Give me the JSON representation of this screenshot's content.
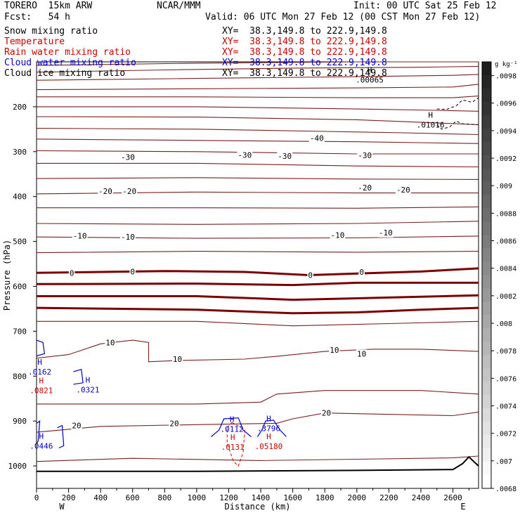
{
  "header": {
    "model": "TORERO  15km ARW",
    "center": "NCAR/MMM",
    "init": "Init: 00 UTC Sat 25 Feb 12",
    "fcst": "Fcst:   54 h",
    "valid": "Valid: 06 UTC Mon 27 Feb 12 (00 CST Mon 27 Feb 12)"
  },
  "legend": [
    {
      "label": "Snow mixing ratio",
      "xy": "XY=  38.3,149.8 to 222.9,149.8",
      "color": "#000000"
    },
    {
      "label": "Temperature",
      "xy": "XY=  38.3,149.8 to 222.9,149.8",
      "color": "#cc0000"
    },
    {
      "label": "Rain water mixing ratio",
      "xy": "XY=  38.3,149.8 to 222.9,149.8",
      "color": "#cc0000"
    },
    {
      "label": "Cloud water mixing ratio",
      "xy": "XY=  38.3,149.8 to 222.9,149.8",
      "color": "#0000cc"
    },
    {
      "label": "Cloud ice mixing ratio",
      "xy": "XY=  38.3,149.8 to 222.9,149.8",
      "color": "#000000"
    }
  ],
  "colorbar": {
    "unit": "g kg⁻¹",
    "ticks": [
      ".0098",
      ".0096",
      ".0094",
      ".0092",
      ".009",
      ".0088",
      ".0086",
      ".0084",
      ".0082",
      ".008",
      ".0078",
      ".0076",
      ".0074",
      ".0072",
      ".007",
      ".0068"
    ],
    "levels": [
      0.0099,
      0.0068
    ]
  },
  "chart_data": {
    "type": "contour",
    "xlabel": "Distance (km)",
    "ylabel": "Pressure (hPa)",
    "xlim": [
      0,
      2760
    ],
    "ylim": [
      1050,
      100
    ],
    "xticks": [
      0,
      200,
      400,
      600,
      800,
      1000,
      1200,
      1400,
      1600,
      1800,
      2000,
      2200,
      2400,
      2600
    ],
    "yticks": [
      200,
      300,
      400,
      500,
      600,
      700,
      800,
      900,
      1000
    ],
    "x_end_labels": {
      "left": "W",
      "right": "E"
    },
    "temperature_contours": [
      {
        "level": -50,
        "points": [
          [
            0,
            108
          ],
          [
            1000,
            103
          ],
          [
            2000,
            100
          ],
          [
            2760,
            100
          ]
        ]
      },
      {
        "level": -50,
        "points": [
          [
            0,
            123
          ],
          [
            800,
            118
          ],
          [
            1600,
            114
          ],
          [
            2400,
            112
          ],
          [
            2760,
            110
          ]
        ]
      },
      {
        "level": -50,
        "points": [
          [
            0,
            141
          ],
          [
            1000,
            137
          ],
          [
            2000,
            133
          ],
          [
            2600,
            130
          ],
          [
            2760,
            128
          ]
        ]
      },
      {
        "level": -50,
        "points": [
          [
            0,
            162
          ],
          [
            1000,
            160
          ],
          [
            2000,
            158
          ],
          [
            2600,
            156
          ],
          [
            2760,
            150
          ]
        ]
      },
      {
        "level": -50,
        "points": [
          [
            0,
            178
          ],
          [
            1000,
            178
          ],
          [
            2000,
            180
          ],
          [
            2600,
            180
          ],
          [
            2760,
            176
          ]
        ]
      },
      {
        "level": -40,
        "points": [
          [
            0,
            200
          ],
          [
            1000,
            200
          ],
          [
            2000,
            205
          ],
          [
            2500,
            208
          ],
          [
            2760,
            210
          ]
        ]
      },
      {
        "level": -40,
        "points": [
          [
            0,
            222
          ],
          [
            1000,
            223
          ],
          [
            2000,
            229
          ],
          [
            2500,
            236
          ],
          [
            2760,
            240
          ]
        ]
      },
      {
        "level": -40,
        "points": [
          [
            0,
            248
          ],
          [
            1000,
            250
          ],
          [
            1800,
            255
          ],
          [
            2300,
            258
          ],
          [
            2760,
            262
          ]
        ]
      },
      {
        "level": -40,
        "points": [
          [
            0,
            272
          ],
          [
            1000,
            275
          ],
          [
            2000,
            278
          ],
          [
            2760,
            282
          ]
        ]
      },
      {
        "level": -30,
        "points": [
          [
            0,
            298
          ],
          [
            1000,
            300
          ],
          [
            2000,
            305
          ],
          [
            2760,
            305
          ]
        ]
      },
      {
        "level": -30,
        "points": [
          [
            0,
            326
          ],
          [
            1000,
            326
          ],
          [
            2000,
            332
          ],
          [
            2760,
            334
          ]
        ]
      },
      {
        "level": -20,
        "points": [
          [
            0,
            360
          ],
          [
            1000,
            358
          ],
          [
            2000,
            361
          ],
          [
            2760,
            362
          ]
        ]
      },
      {
        "level": -20,
        "points": [
          [
            0,
            394
          ],
          [
            1000,
            390
          ],
          [
            2000,
            392
          ],
          [
            2760,
            392
          ]
        ]
      },
      {
        "level": -10,
        "points": [
          [
            0,
            425
          ],
          [
            1000,
            425
          ],
          [
            2000,
            426
          ],
          [
            2760,
            423
          ]
        ]
      },
      {
        "level": -10,
        "points": [
          [
            0,
            460
          ],
          [
            1000,
            462
          ],
          [
            2000,
            460
          ],
          [
            2760,
            455
          ]
        ]
      },
      {
        "level": -10,
        "points": [
          [
            0,
            490
          ],
          [
            1000,
            493
          ],
          [
            2000,
            492
          ],
          [
            2760,
            488
          ]
        ]
      },
      {
        "level": -10,
        "points": [
          [
            0,
            525
          ],
          [
            1000,
            522
          ],
          [
            2000,
            524
          ],
          [
            2760,
            522
          ]
        ]
      },
      {
        "level": 0,
        "points": [
          [
            0,
            570
          ],
          [
            800,
            566
          ],
          [
            1300,
            568
          ],
          [
            1700,
            575
          ],
          [
            2400,
            567
          ],
          [
            2760,
            560
          ]
        ]
      },
      {
        "level": 0,
        "points": [
          [
            0,
            595
          ],
          [
            1000,
            594
          ],
          [
            1600,
            597
          ],
          [
            2000,
            592
          ],
          [
            2760,
            592
          ]
        ]
      },
      {
        "level": 0,
        "points": [
          [
            0,
            622
          ],
          [
            1000,
            622
          ],
          [
            1600,
            630
          ],
          [
            2200,
            625
          ],
          [
            2760,
            620
          ]
        ]
      },
      {
        "level": 0,
        "points": [
          [
            0,
            648
          ],
          [
            1000,
            652
          ],
          [
            1600,
            660
          ],
          [
            2000,
            658
          ],
          [
            2400,
            652
          ],
          [
            2760,
            648
          ]
        ]
      },
      {
        "level": 10,
        "points": [
          [
            0,
            678
          ],
          [
            1000,
            678
          ],
          [
            1600,
            688
          ],
          [
            2200,
            683
          ],
          [
            2760,
            678
          ]
        ]
      },
      {
        "level": 10,
        "points": [
          [
            0,
            760
          ],
          [
            200,
            752
          ],
          [
            400,
            728
          ],
          [
            600,
            720
          ],
          [
            700,
            725
          ],
          [
            700,
            768
          ],
          [
            900,
            765
          ],
          [
            1300,
            762
          ],
          [
            1500,
            756
          ],
          [
            1800,
            745
          ],
          [
            2100,
            740
          ],
          [
            2400,
            740
          ],
          [
            2760,
            745
          ]
        ]
      },
      {
        "level": 20,
        "points": [
          [
            0,
            862
          ],
          [
            1000,
            862
          ],
          [
            1400,
            858
          ],
          [
            1500,
            840
          ],
          [
            1800,
            832
          ],
          [
            2400,
            832
          ],
          [
            2760,
            840
          ]
        ]
      },
      {
        "level": 20,
        "points": [
          [
            0,
            925
          ],
          [
            400,
            912
          ],
          [
            1000,
            908
          ],
          [
            1500,
            905
          ],
          [
            1600,
            895
          ],
          [
            1800,
            882
          ],
          [
            2600,
            888
          ],
          [
            2760,
            880
          ]
        ]
      },
      {
        "level": 20,
        "points": [
          [
            0,
            990
          ],
          [
            600,
            983
          ],
          [
            1400,
            988
          ],
          [
            2000,
            985
          ],
          [
            2600,
            982
          ],
          [
            2760,
            978
          ]
        ]
      }
    ],
    "contour_labels": [
      {
        "text": "-40",
        "x": 1750,
        "y": 270
      },
      {
        "text": "-30",
        "x": 570,
        "y": 312
      },
      {
        "text": "-30",
        "x": 1300,
        "y": 307
      },
      {
        "text": "-30",
        "x": 1550,
        "y": 310
      },
      {
        "text": "-30",
        "x": 2050,
        "y": 308
      },
      {
        "text": "-20",
        "x": 430,
        "y": 388
      },
      {
        "text": "-20",
        "x": 580,
        "y": 388
      },
      {
        "text": "-20",
        "x": 2050,
        "y": 380
      },
      {
        "text": "-20",
        "x": 2290,
        "y": 385
      },
      {
        "text": "-10",
        "x": 270,
        "y": 487
      },
      {
        "text": "-10",
        "x": 570,
        "y": 490
      },
      {
        "text": "-10",
        "x": 1880,
        "y": 486
      },
      {
        "text": "-10",
        "x": 2180,
        "y": 480
      },
      {
        "text": "0",
        "x": 220,
        "y": 570
      },
      {
        "text": "0",
        "x": 600,
        "y": 567
      },
      {
        "text": "0",
        "x": 1710,
        "y": 575
      },
      {
        "text": "0",
        "x": 2030,
        "y": 568
      },
      {
        "text": "10",
        "x": 460,
        "y": 725
      },
      {
        "text": "10",
        "x": 880,
        "y": 762
      },
      {
        "text": "10",
        "x": 1860,
        "y": 742
      },
      {
        "text": "10",
        "x": 2030,
        "y": 750
      },
      {
        "text": "20",
        "x": 250,
        "y": 910
      },
      {
        "text": "20",
        "x": 860,
        "y": 905
      },
      {
        "text": "20",
        "x": 1810,
        "y": 882
      }
    ],
    "freezing_line": {
      "level": 0
    },
    "terrain": {
      "points": [
        [
          0,
          1012
        ],
        [
          1000,
          1012
        ],
        [
          2000,
          1010
        ],
        [
          2600,
          1008
        ],
        [
          2660,
          995
        ],
        [
          2700,
          980
        ],
        [
          2760,
          1000
        ]
      ]
    },
    "cloud_water_contours": [
      {
        "points": [
          [
            0,
            720
          ],
          [
            40,
            725
          ],
          [
            50,
            750
          ],
          [
            0,
            755
          ]
        ]
      },
      {
        "points": [
          [
            230,
            790
          ],
          [
            280,
            785
          ],
          [
            290,
            815
          ],
          [
            230,
            818
          ]
        ]
      },
      {
        "points": [
          [
            0,
            905
          ],
          [
            20,
            900
          ],
          [
            10,
            945
          ],
          [
            0,
            950
          ]
        ]
      },
      {
        "points": [
          [
            130,
            915
          ],
          [
            160,
            910
          ],
          [
            170,
            955
          ],
          [
            140,
            960
          ]
        ]
      },
      {
        "points": [
          [
            1090,
            935
          ],
          [
            1140,
            920
          ],
          [
            1170,
            895
          ],
          [
            1260,
            893
          ],
          [
            1290,
            920
          ],
          [
            1340,
            935
          ]
        ]
      },
      {
        "points": [
          [
            1380,
            935
          ],
          [
            1410,
            918
          ],
          [
            1430,
            900
          ],
          [
            1480,
            898
          ],
          [
            1520,
            920
          ],
          [
            1560,
            935
          ]
        ]
      }
    ],
    "rain_water_contours": [
      {
        "points": [
          [
            1220,
            903
          ],
          [
            1300,
            920
          ],
          [
            1290,
            970
          ],
          [
            1260,
            1000
          ],
          [
            1230,
            990
          ],
          [
            1190,
            950
          ],
          [
            1190,
            915
          ]
        ]
      }
    ],
    "snow_contours": [
      {
        "points": [
          [
            2500,
            205
          ],
          [
            2560,
            206
          ],
          [
            2620,
            198
          ],
          [
            2660,
            185
          ],
          [
            2720,
            190
          ],
          [
            2760,
            180
          ]
        ]
      },
      {
        "points": [
          [
            2500,
            240
          ],
          [
            2530,
            250
          ],
          [
            2580,
            245
          ],
          [
            2620,
            232
          ],
          [
            2660,
            238
          ],
          [
            2760,
            240
          ]
        ]
      }
    ],
    "extrema": [
      {
        "kind": "H",
        "value": ".0162",
        "x": 20,
        "y": 790,
        "color": "#0000cc"
      },
      {
        "kind": "H",
        "value": ".0321",
        "x": 320,
        "y": 830,
        "color": "#0000cc"
      },
      {
        "kind": "H",
        "value": ".0821",
        "x": 30,
        "y": 832,
        "color": "#cc0000"
      },
      {
        "kind": "H",
        "value": ".0446",
        "x": 30,
        "y": 955,
        "color": "#0000cc"
      },
      {
        "kind": "H",
        "value": ".0112",
        "x": 1220,
        "y": 918,
        "color": "#0000cc"
      },
      {
        "kind": "H",
        "value": ".0131",
        "x": 1225,
        "y": 958,
        "color": "#cc0000"
      },
      {
        "kind": "H",
        "value": ".3796",
        "x": 1450,
        "y": 916,
        "color": "#0000cc"
      },
      {
        "kind": "H",
        "value": ".05180",
        "x": 1450,
        "y": 956,
        "color": "#cc0000"
      },
      {
        "kind": "H",
        "value": ".00065",
        "x": 2080,
        "y": 140,
        "color": "#000000"
      },
      {
        "kind": "H",
        "value": ".01016",
        "x": 2460,
        "y": 240,
        "color": "#000000"
      }
    ]
  }
}
